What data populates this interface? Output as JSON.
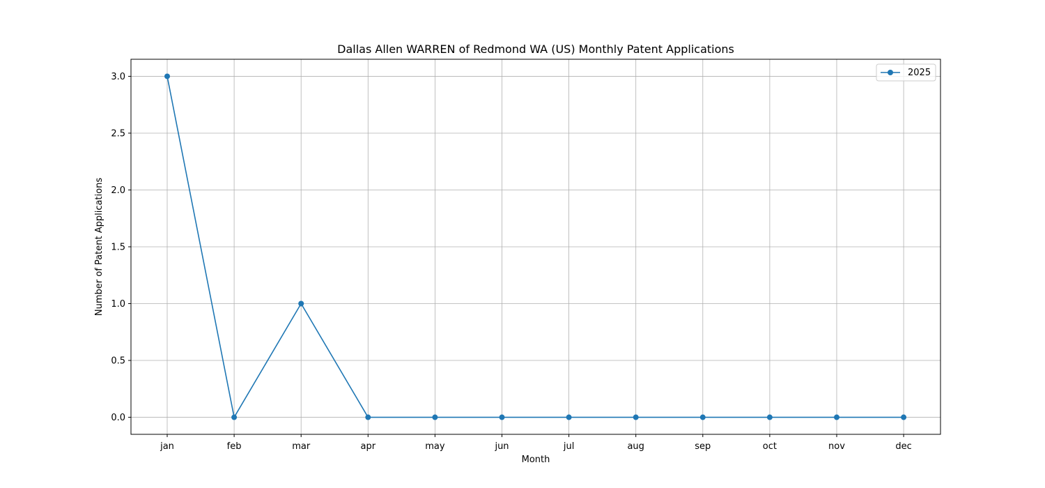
{
  "colors": {
    "series": "#1f77b4",
    "grid": "#b0b0b0",
    "axis": "#000000",
    "background": "#ffffff"
  },
  "chart_data": {
    "type": "line",
    "title": "Dallas Allen WARREN of Redmond WA (US) Monthly Patent Applications",
    "xlabel": "Month",
    "ylabel": "Number of Patent Applications",
    "categories": [
      "jan",
      "feb",
      "mar",
      "apr",
      "may",
      "jun",
      "jul",
      "aug",
      "sep",
      "oct",
      "nov",
      "dec"
    ],
    "series": [
      {
        "name": "2025",
        "values": [
          3,
          0,
          1,
          0,
          0,
          0,
          0,
          0,
          0,
          0,
          0,
          0
        ],
        "marker": "circle"
      }
    ],
    "ylim": [
      -0.15,
      3.15
    ],
    "yticks": [
      0.0,
      0.5,
      1.0,
      1.5,
      2.0,
      2.5,
      3.0
    ],
    "ytick_labels": [
      "0.0",
      "0.5",
      "1.0",
      "1.5",
      "2.0",
      "2.5",
      "3.0"
    ],
    "grid": true,
    "legend_position": "top-right"
  }
}
